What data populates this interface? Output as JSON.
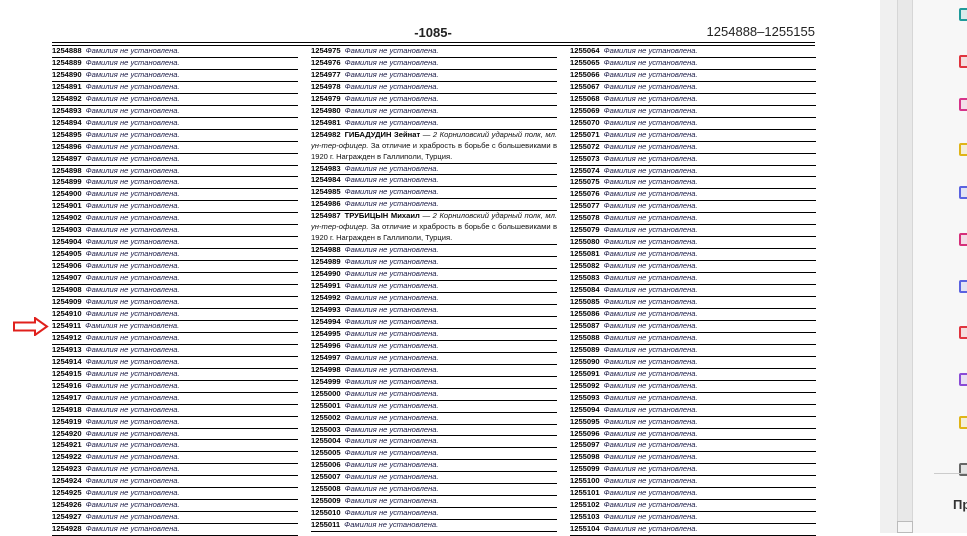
{
  "header": {
    "page_number": "-1085-",
    "range": "1254888–1255155"
  },
  "default_note": "Фамилия не установлена.",
  "columns": [
    {
      "entries": [
        {
          "n": "1254888"
        },
        {
          "n": "1254889"
        },
        {
          "n": "1254890"
        },
        {
          "n": "1254891"
        },
        {
          "n": "1254892"
        },
        {
          "n": "1254893"
        },
        {
          "n": "1254894"
        },
        {
          "n": "1254895"
        },
        {
          "n": "1254896"
        },
        {
          "n": "1254897"
        },
        {
          "n": "1254898"
        },
        {
          "n": "1254899"
        },
        {
          "n": "1254900"
        },
        {
          "n": "1254901"
        },
        {
          "n": "1254902"
        },
        {
          "n": "1254903"
        },
        {
          "n": "1254904"
        },
        {
          "n": "1254905"
        },
        {
          "n": "1254906"
        },
        {
          "n": "1254907"
        },
        {
          "n": "1254908"
        },
        {
          "n": "1254909"
        },
        {
          "n": "1254910"
        },
        {
          "n": "1254911"
        },
        {
          "n": "1254912"
        },
        {
          "n": "1254913"
        },
        {
          "n": "1254914"
        },
        {
          "n": "1254915"
        },
        {
          "n": "1254916"
        },
        {
          "n": "1254917"
        },
        {
          "n": "1254918"
        },
        {
          "n": "1254919"
        },
        {
          "n": "1254920"
        },
        {
          "n": "1254921"
        },
        {
          "n": "1254922"
        },
        {
          "n": "1254923"
        },
        {
          "n": "1254924"
        },
        {
          "n": "1254925"
        },
        {
          "n": "1254926"
        },
        {
          "n": "1254927"
        },
        {
          "n": "1254928"
        }
      ]
    },
    {
      "entries": [
        {
          "n": "1254975"
        },
        {
          "n": "1254976"
        },
        {
          "n": "1254977"
        },
        {
          "n": "1254978"
        },
        {
          "n": "1254979"
        },
        {
          "n": "1254980"
        },
        {
          "n": "1254981"
        },
        {
          "n": "1254982",
          "name": "ГИБАДУДИН Зейнат",
          "unit": "— 2 Корниловский ударный полк, мл. ун-тер-офицер.",
          "text": "За отличие и храбрость в борьбе с большевиками в 1920 г. Награжден в Галлиполи, Турция."
        },
        {
          "n": "1254983"
        },
        {
          "n": "1254984"
        },
        {
          "n": "1254985"
        },
        {
          "n": "1254986"
        },
        {
          "n": "1254987",
          "name": "ТРУБИЦЫН Михаил",
          "unit": "— 2 Корниловский ударный полк, мл. ун-тер-офицер.",
          "text": "За отличие и храбрость в борьбе с большевиками в 1920 г. Награжден в Галлиполи, Турция."
        },
        {
          "n": "1254988"
        },
        {
          "n": "1254989"
        },
        {
          "n": "1254990"
        },
        {
          "n": "1254991"
        },
        {
          "n": "1254992"
        },
        {
          "n": "1254993"
        },
        {
          "n": "1254994"
        },
        {
          "n": "1254995"
        },
        {
          "n": "1254996"
        },
        {
          "n": "1254997"
        },
        {
          "n": "1254998"
        },
        {
          "n": "1254999"
        },
        {
          "n": "1255000"
        },
        {
          "n": "1255001"
        },
        {
          "n": "1255002"
        },
        {
          "n": "1255003"
        },
        {
          "n": "1255004"
        },
        {
          "n": "1255005"
        },
        {
          "n": "1255006"
        },
        {
          "n": "1255007"
        },
        {
          "n": "1255008"
        },
        {
          "n": "1255009"
        },
        {
          "n": "1255010"
        },
        {
          "n": "1255011"
        }
      ]
    },
    {
      "entries": [
        {
          "n": "1255064"
        },
        {
          "n": "1255065"
        },
        {
          "n": "1255066"
        },
        {
          "n": "1255067"
        },
        {
          "n": "1255068"
        },
        {
          "n": "1255069"
        },
        {
          "n": "1255070"
        },
        {
          "n": "1255071"
        },
        {
          "n": "1255072"
        },
        {
          "n": "1255073"
        },
        {
          "n": "1255074"
        },
        {
          "n": "1255075"
        },
        {
          "n": "1255076"
        },
        {
          "n": "1255077"
        },
        {
          "n": "1255078"
        },
        {
          "n": "1255079"
        },
        {
          "n": "1255080"
        },
        {
          "n": "1255081"
        },
        {
          "n": "1255082"
        },
        {
          "n": "1255083"
        },
        {
          "n": "1255084"
        },
        {
          "n": "1255085"
        },
        {
          "n": "1255086"
        },
        {
          "n": "1255087"
        },
        {
          "n": "1255088"
        },
        {
          "n": "1255089"
        },
        {
          "n": "1255090"
        },
        {
          "n": "1255091"
        },
        {
          "n": "1255092"
        },
        {
          "n": "1255093"
        },
        {
          "n": "1255094"
        },
        {
          "n": "1255095"
        },
        {
          "n": "1255096"
        },
        {
          "n": "1255097"
        },
        {
          "n": "1255098"
        },
        {
          "n": "1255099"
        },
        {
          "n": "1255100"
        },
        {
          "n": "1255101"
        },
        {
          "n": "1255102"
        },
        {
          "n": "1255103"
        },
        {
          "n": "1255104"
        }
      ]
    }
  ],
  "annotation": {
    "icon": "red-arrow-right",
    "color": "#e0201c",
    "points_to": "1254911"
  },
  "tools_panel": {
    "tools": [
      {
        "icon": "edit-pdf-icon",
        "color": "#1f9a9a"
      },
      {
        "icon": "export-pdf-icon",
        "color": "#e0343f"
      },
      {
        "icon": "organize-pages-icon",
        "color": "#d6338a"
      },
      {
        "icon": "comment-icon",
        "color": "#e0b417"
      },
      {
        "icon": "scan-ocr-icon",
        "color": "#5a62e0"
      },
      {
        "icon": "fill-sign-icon",
        "color": "#d62f7a"
      },
      {
        "icon": "protect-icon",
        "color": "#5a62e0"
      },
      {
        "icon": "create-pdf-icon",
        "color": "#e0343f"
      },
      {
        "icon": "send-for-signature-icon",
        "color": "#8a4bd6"
      },
      {
        "icon": "stamp-icon",
        "color": "#e0b417"
      },
      {
        "icon": "more-tools-icon",
        "color": "#666666"
      }
    ],
    "label": "Пр"
  }
}
